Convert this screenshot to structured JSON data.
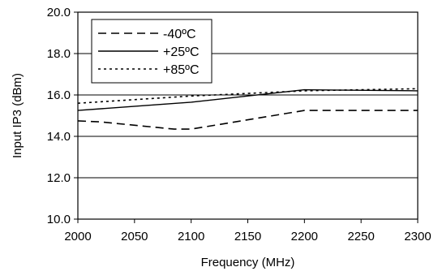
{
  "chart_data": {
    "type": "line",
    "xlabel": "Frequency (MHz)",
    "ylabel": "Input IP3 (dBm)",
    "xlim": [
      2000,
      2300
    ],
    "ylim": [
      10.0,
      20.0
    ],
    "x_ticks": [
      2000,
      2050,
      2100,
      2150,
      2200,
      2250,
      2300
    ],
    "y_ticks": [
      10.0,
      12.0,
      14.0,
      16.0,
      18.0,
      20.0
    ],
    "x_tick_labels": [
      "2000",
      "2050",
      "2100",
      "2150",
      "2200",
      "2250",
      "2300"
    ],
    "y_tick_labels": [
      "10.0",
      "12.0",
      "14.0",
      "16.0",
      "18.0",
      "20.0"
    ],
    "grid": "horizontal",
    "legend_position": "top-left",
    "series": [
      {
        "name": "-40ºC",
        "dash": "dashed",
        "x": [
          2000,
          2020,
          2085,
          2100,
          2200,
          2300
        ],
        "y": [
          14.75,
          14.7,
          14.35,
          14.35,
          15.25,
          15.25
        ]
      },
      {
        "name": "+25ºC",
        "dash": "solid",
        "x": [
          2000,
          2100,
          2200,
          2300
        ],
        "y": [
          15.25,
          15.65,
          16.25,
          16.2
        ]
      },
      {
        "name": "+85ºC",
        "dash": "dotted",
        "x": [
          2000,
          2100,
          2200,
          2300
        ],
        "y": [
          15.6,
          15.95,
          16.2,
          16.3
        ]
      }
    ],
    "line_color": "#000000",
    "grid_color": "#000000",
    "background_color": "#ffffff"
  }
}
